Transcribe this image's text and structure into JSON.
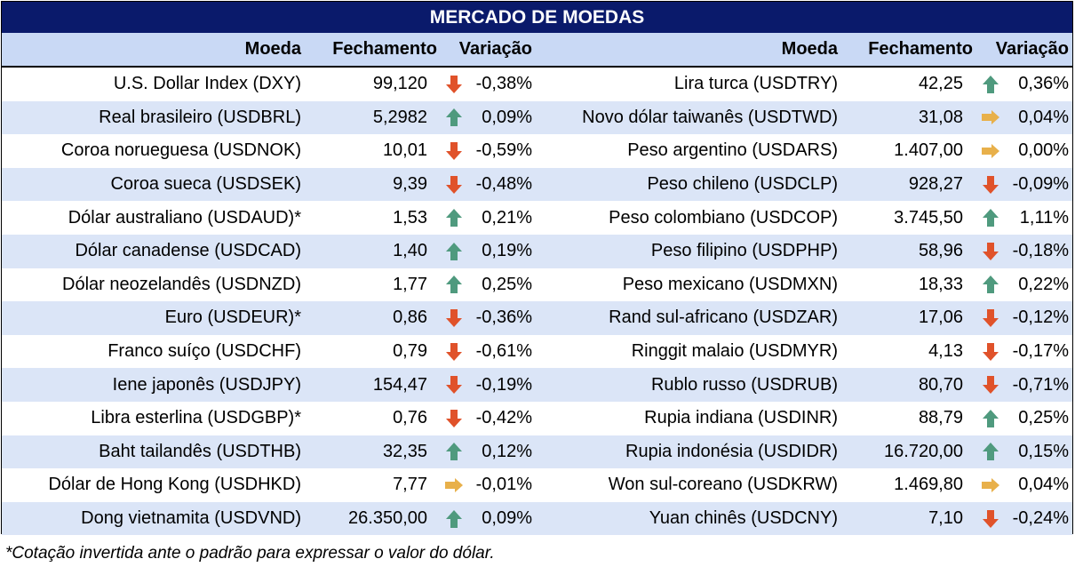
{
  "title": "MERCADO DE MOEDAS",
  "headers": {
    "moeda": "Moeda",
    "fechamento": "Fechamento",
    "variacao": "Variação"
  },
  "colors": {
    "title_bg": "#0a1a6b",
    "header_bg": "#c9d9f5",
    "alt_row": "#dbe5f7",
    "up": "#4f9a7e",
    "down": "#e0522a",
    "flat": "#e8b04a"
  },
  "left": [
    {
      "name": "U.S. Dollar Index (DXY)",
      "close": "99,120",
      "trend": "down",
      "var": "-0,38%"
    },
    {
      "name": "Real brasileiro (USDBRL)",
      "close": "5,2982",
      "trend": "up",
      "var": "0,09%"
    },
    {
      "name": "Coroa norueguesa (USDNOK)",
      "close": "10,01",
      "trend": "down",
      "var": "-0,59%"
    },
    {
      "name": "Coroa sueca (USDSEK)",
      "close": "9,39",
      "trend": "down",
      "var": "-0,48%"
    },
    {
      "name": "Dólar australiano (USDAUD)*",
      "close": "1,53",
      "trend": "up",
      "var": "0,21%"
    },
    {
      "name": "Dólar canadense (USDCAD)",
      "close": "1,40",
      "trend": "up",
      "var": "0,19%"
    },
    {
      "name": "Dólar neozelandês (USDNZD)",
      "close": "1,77",
      "trend": "up",
      "var": "0,25%"
    },
    {
      "name": "Euro (USDEUR)*",
      "close": "0,86",
      "trend": "down",
      "var": "-0,36%"
    },
    {
      "name": "Franco suíço (USDCHF)",
      "close": "0,79",
      "trend": "down",
      "var": "-0,61%"
    },
    {
      "name": "Iene japonês (USDJPY)",
      "close": "154,47",
      "trend": "down",
      "var": "-0,19%"
    },
    {
      "name": "Libra esterlina (USDGBP)*",
      "close": "0,76",
      "trend": "down",
      "var": "-0,42%"
    },
    {
      "name": "Baht tailandês (USDTHB)",
      "close": "32,35",
      "trend": "up",
      "var": "0,12%"
    },
    {
      "name": "Dólar de Hong Kong (USDHKD)",
      "close": "7,77",
      "trend": "flat",
      "var": "-0,01%"
    },
    {
      "name": "Dong vietnamita (USDVND)",
      "close": "26.350,00",
      "trend": "up",
      "var": "0,09%"
    }
  ],
  "right": [
    {
      "name": "Lira turca (USDTRY)",
      "close": "42,25",
      "trend": "up",
      "var": "0,36%"
    },
    {
      "name": "Novo dólar taiwanês (USDTWD)",
      "close": "31,08",
      "trend": "flat",
      "var": "0,04%"
    },
    {
      "name": "Peso argentino (USDARS)",
      "close": "1.407,00",
      "trend": "flat",
      "var": "0,00%"
    },
    {
      "name": "Peso chileno (USDCLP)",
      "close": "928,27",
      "trend": "down",
      "var": "-0,09%"
    },
    {
      "name": "Peso colombiano (USDCOP)",
      "close": "3.745,50",
      "trend": "up",
      "var": "1,11%"
    },
    {
      "name": "Peso filipino (USDPHP)",
      "close": "58,96",
      "trend": "down",
      "var": "-0,18%"
    },
    {
      "name": "Peso mexicano (USDMXN)",
      "close": "18,33",
      "trend": "up",
      "var": "0,22%"
    },
    {
      "name": "Rand sul-africano (USDZAR)",
      "close": "17,06",
      "trend": "down",
      "var": "-0,12%"
    },
    {
      "name": "Ringgit malaio (USDMYR)",
      "close": "4,13",
      "trend": "down",
      "var": "-0,17%"
    },
    {
      "name": "Rublo russo (USDRUB)",
      "close": "80,70",
      "trend": "down",
      "var": "-0,71%"
    },
    {
      "name": "Rupia indiana (USDINR)",
      "close": "88,79",
      "trend": "up",
      "var": "0,25%"
    },
    {
      "name": "Rupia indonésia (USDIDR)",
      "close": "16.720,00",
      "trend": "up",
      "var": "0,15%"
    },
    {
      "name": "Won sul-coreano (USDKRW)",
      "close": "1.469,80",
      "trend": "flat",
      "var": "0,04%"
    },
    {
      "name": "Yuan chinês (USDCNY)",
      "close": "7,10",
      "trend": "down",
      "var": "-0,24%"
    }
  ],
  "footnote": "*Cotação invertida ante o padrão para expressar o valor do dólar."
}
